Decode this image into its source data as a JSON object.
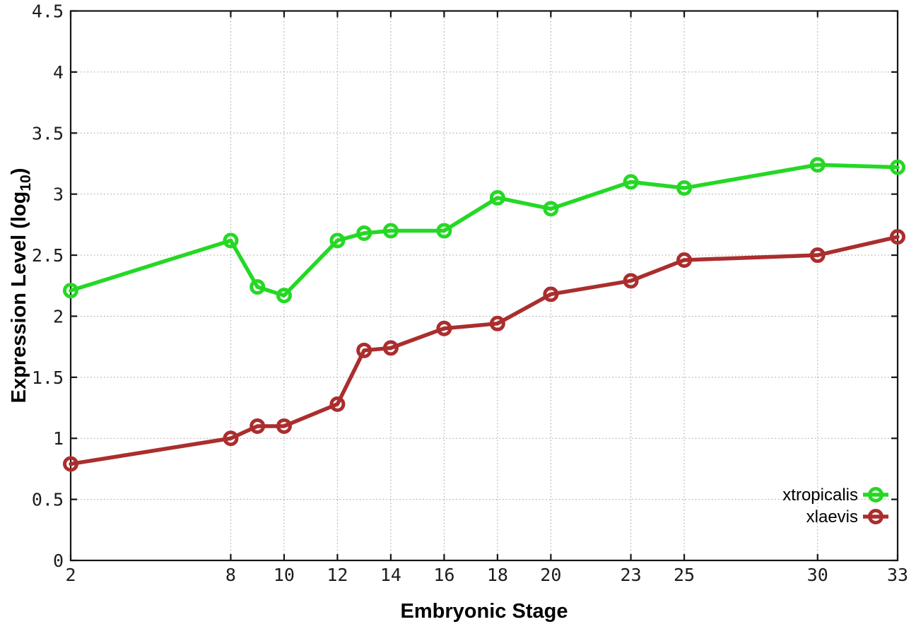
{
  "chart_data": {
    "type": "line",
    "title": "",
    "xlabel": "Embryonic Stage",
    "ylabel": "Expression Level (log10)",
    "ylabel_parts": {
      "prefix": "Expression Level (log",
      "sub": "10",
      "suffix": ")"
    },
    "xlim": [
      2,
      33
    ],
    "ylim": [
      0,
      4.5
    ],
    "grid": true,
    "legend_position": "bottom-right",
    "x": [
      2,
      8,
      9,
      10,
      12,
      13,
      14,
      16,
      18,
      20,
      23,
      25,
      30,
      33
    ],
    "series": [
      {
        "name": "xtropicalis",
        "color": "#25d825",
        "values": [
          2.21,
          2.62,
          2.24,
          2.17,
          2.62,
          2.68,
          2.7,
          2.7,
          2.97,
          2.88,
          3.1,
          3.05,
          3.24,
          3.22
        ]
      },
      {
        "name": "xlaevis",
        "color": "#aa2e2e",
        "values": [
          0.79,
          1.0,
          1.1,
          1.1,
          1.28,
          1.72,
          1.74,
          1.9,
          1.94,
          2.18,
          2.29,
          2.46,
          2.5,
          2.65
        ]
      }
    ],
    "x_ticks": [
      2,
      8,
      10,
      12,
      14,
      16,
      18,
      20,
      23,
      25,
      30,
      33
    ],
    "x_tick_labels": [
      "2",
      "8",
      "10",
      "12",
      "14",
      "16",
      "18",
      "20",
      "23",
      "25",
      "30",
      "33"
    ],
    "y_ticks": [
      0,
      0.5,
      1,
      1.5,
      2,
      2.5,
      3,
      3.5,
      4,
      4.5
    ],
    "y_tick_labels": [
      "0",
      "0.5",
      "1",
      "1.5",
      "2",
      "2.5",
      "3",
      "3.5",
      "4",
      "4.5"
    ]
  },
  "colors": {
    "background": "#ffffff",
    "frame": "#151515",
    "gridline": "#9b9b9b",
    "text": "#000000",
    "xtropicalis": "#25d825",
    "xlaevis": "#aa2e2e"
  }
}
